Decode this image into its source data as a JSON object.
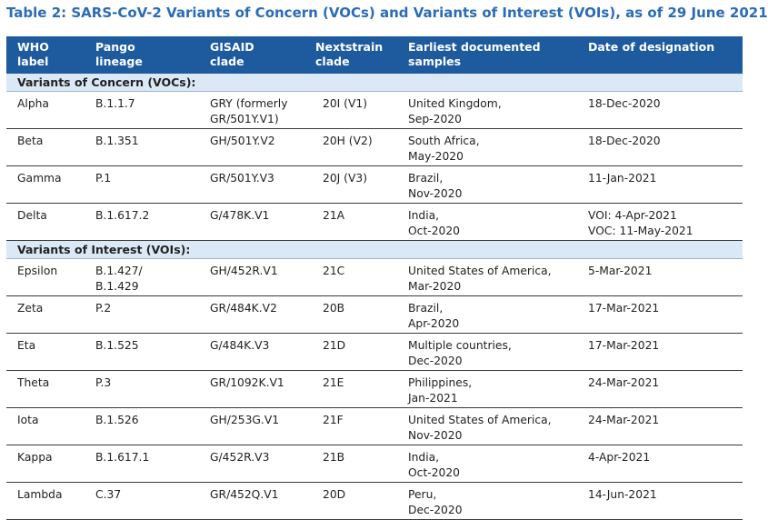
{
  "title": "Table 2: SARS-CoV-2 Variants of Concern (VOCs) and Variants of Interest (VOIs), as of 29 June 2021",
  "columns": [
    "WHO\nlabel",
    "Pango\nlineage",
    "GISAID\nclade",
    "Nextstrain\nclade",
    "Earliest documented\nsamples",
    "Date of designation"
  ],
  "sections": [
    {
      "label": "Variants of Concern (VOCs):",
      "rows": [
        [
          "Alpha",
          "B.1.1.7",
          "GRY (formerly\nGR/501Y.V1)",
          "20I (V1)",
          "United Kingdom,\nSep-2020",
          "18-Dec-2020"
        ],
        [
          "Beta",
          "B.1.351",
          "GH/501Y.V2",
          "20H (V2)",
          "South Africa,\nMay-2020",
          "18-Dec-2020"
        ],
        [
          "Gamma",
          "P.1",
          "GR/501Y.V3",
          "20J (V3)",
          "Brazil,\nNov-2020",
          "11-Jan-2021"
        ],
        [
          "Delta",
          "B.1.617.2",
          "G/478K.V1",
          "21A",
          "India,\nOct-2020",
          "VOI: 4-Apr-2021\nVOC: 11-May-2021"
        ]
      ]
    },
    {
      "label": "Variants of Interest (VOIs):",
      "rows": [
        [
          "Epsilon",
          "B.1.427/\nB.1.429",
          "GH/452R.V1",
          "21C",
          "United States of America,\nMar-2020",
          "5-Mar-2021"
        ],
        [
          "Zeta",
          "P.2",
          "GR/484K.V2",
          "20B",
          "Brazil,\nApr-2020",
          "17-Mar-2021"
        ],
        [
          "Eta",
          "B.1.525",
          "G/484K.V3",
          "21D",
          "Multiple countries,\nDec-2020",
          "17-Mar-2021"
        ],
        [
          "Theta",
          "P.3",
          "GR/1092K.V1",
          "21E",
          "Philippines,\nJan-2021",
          "24-Mar-2021"
        ],
        [
          "Iota",
          "B.1.526",
          "GH/253G.V1",
          "21F",
          "United States of America,\nNov-2020",
          "24-Mar-2021"
        ],
        [
          "Kappa",
          "B.1.617.1",
          "G/452R.V3",
          "21B",
          "India,\nOct-2020",
          "4-Apr-2021"
        ],
        [
          "Lambda",
          "C.37",
          "GR/452Q.V1",
          "20D",
          "Peru,\nDec-2020",
          "14-Jun-2021"
        ]
      ]
    }
  ],
  "colors": {
    "title": "#2b6cb5",
    "header_bg": "#1d5a9e",
    "section_bg": "#dbe9f6"
  }
}
